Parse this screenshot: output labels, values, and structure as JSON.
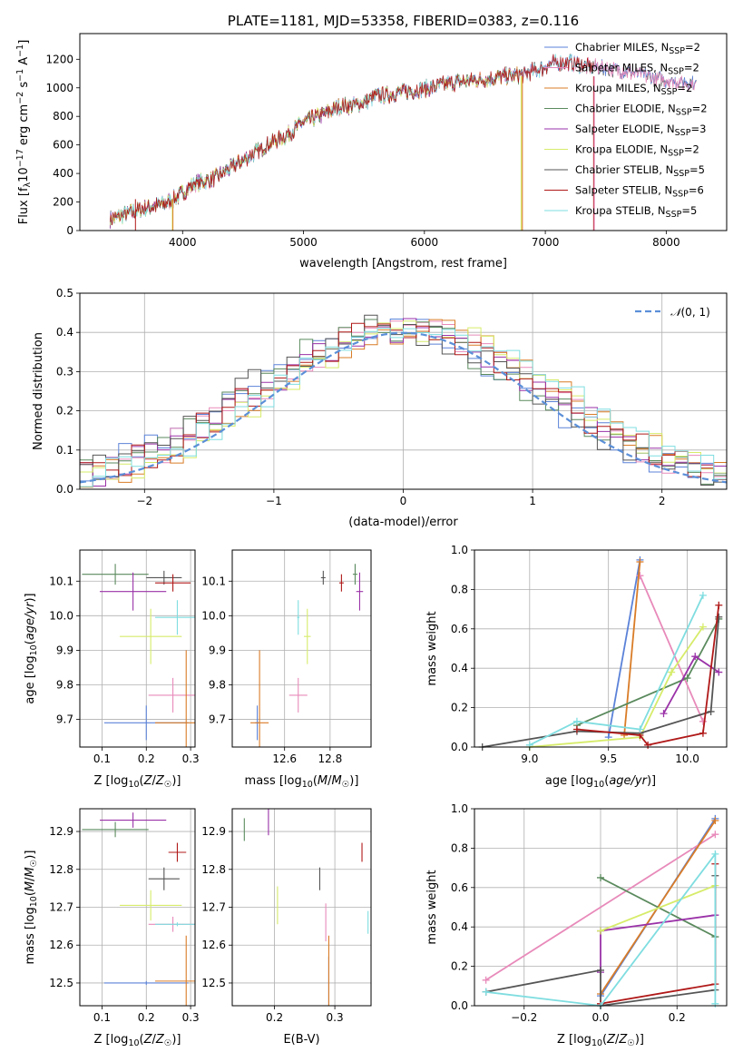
{
  "colors": {
    "chabrier_miles": "#5b82d8",
    "salpeter_miles": "#e88aba",
    "kroupa_miles": "#d97c27",
    "chabrier_elodie": "#5a8a5d",
    "salpeter_elodie": "#9a32a8",
    "kroupa_elodie": "#d6ec6a",
    "chabrier_stelib": "#555555",
    "salpeter_stelib": "#b01818",
    "kroupa_stelib": "#7fdde0",
    "normal": "#5b8fd8"
  },
  "chart_data": [
    {
      "type": "line",
      "title": "PLATE=1181, MJD=53358, FIBERID=0383, z=0.116",
      "xlabel": "wavelength [Angstrom, rest frame]",
      "ylabel": "Flux [f",
      "ylabel_parts": [
        "Flux [f",
        "λ",
        "10",
        "−17",
        " erg cm",
        "−2",
        " s",
        "−1",
        " A",
        "−1",
        "]"
      ],
      "xlim": [
        3150,
        8500
      ],
      "ylim": [
        0,
        1380
      ],
      "xticks": [
        4000,
        5000,
        6000,
        7000,
        8000
      ],
      "yticks": [
        0,
        200,
        400,
        600,
        800,
        1000,
        1200
      ],
      "spectrum_anchors": {
        "x": [
          3400,
          3550,
          3700,
          3850,
          3950,
          4100,
          4250,
          4400,
          4550,
          4700,
          4850,
          5000,
          5150,
          5300,
          5450,
          5600,
          5750,
          5900,
          6050,
          6200,
          6350,
          6500,
          6650,
          6800,
          6950,
          7050,
          7200,
          7350,
          7500,
          7650,
          7800,
          7950,
          8100,
          8250
        ],
        "y": [
          80,
          120,
          160,
          190,
          230,
          330,
          360,
          440,
          520,
          600,
          660,
          760,
          810,
          870,
          880,
          940,
          960,
          980,
          1000,
          1030,
          1050,
          1060,
          1080,
          1090,
          1130,
          1170,
          1180,
          1150,
          1140,
          1120,
          1090,
          1060,
          1040,
          1030
        ]
      },
      "series": [
        {
          "name_main": "Chabrier MILES, N",
          "name_sub": "SSP",
          "name_tail": "=2",
          "color_key": "chabrier_miles",
          "cut": 8250
        },
        {
          "name_main": "Salpeter MILES, N",
          "name_sub": "SSP",
          "name_tail": "=2",
          "color_key": "salpeter_miles",
          "cut": 8250
        },
        {
          "name_main": "Kroupa MILES, N",
          "name_sub": "SSP",
          "name_tail": "=2",
          "color_key": "kroupa_miles",
          "cut": 6800
        },
        {
          "name_main": "Chabrier ELODIE, N",
          "name_sub": "SSP",
          "name_tail": "=2",
          "color_key": "chabrier_elodie",
          "cut": 6800
        },
        {
          "name_main": "Salpeter ELODIE, N",
          "name_sub": "SSP",
          "name_tail": "=3",
          "color_key": "salpeter_elodie",
          "cut": 6800
        },
        {
          "name_main": "Kroupa ELODIE, N",
          "name_sub": "SSP",
          "name_tail": "=2",
          "color_key": "kroupa_elodie",
          "cut": 6800
        },
        {
          "name_main": "Chabrier STELIB, N",
          "name_sub": "SSP",
          "name_tail": "=5",
          "color_key": "chabrier_stelib",
          "cut": 8250
        },
        {
          "name_main": "Salpeter STELIB, N",
          "name_sub": "SSP",
          "name_tail": "=6",
          "color_key": "salpeter_stelib",
          "cut": 7400
        },
        {
          "name_main": "Kroupa STELIB, N",
          "name_sub": "SSP",
          "name_tail": "=5",
          "color_key": "kroupa_stelib",
          "cut": 7400
        }
      ]
    },
    {
      "type": "histogram",
      "xlabel": "(data-model)/error",
      "ylabel": "Normed distribution",
      "xlim": [
        -2.5,
        2.5
      ],
      "ylim": [
        0,
        0.5
      ],
      "xticks": [
        -2,
        -1,
        0,
        1,
        2
      ],
      "yticks": [
        0.0,
        0.1,
        0.2,
        0.3,
        0.4,
        0.5
      ],
      "bin_width": 0.1,
      "legend": "𝒩(0, 1)"
    },
    {
      "type": "scatter",
      "xlabel": "Z [log10(Z/Z☉)]",
      "ylabel": "age  [log10(age/yr)]",
      "xlim": [
        0.05,
        0.31
      ],
      "ylim": [
        9.62,
        10.19
      ],
      "xticks": [
        0.1,
        0.2,
        0.3
      ],
      "yticks": [
        9.7,
        9.8,
        9.9,
        10.0,
        10.1
      ],
      "points": [
        {
          "k": "chabrier_miles",
          "x": 0.2,
          "y": 9.69,
          "xe": 0.095,
          "ye": 0.05
        },
        {
          "k": "salpeter_miles",
          "x": 0.26,
          "y": 9.77,
          "xe": 0.055,
          "ye": 0.05
        },
        {
          "k": "kroupa_miles",
          "x": 0.29,
          "y": 9.69,
          "xe": 0.07,
          "ye": 0.21
        },
        {
          "k": "chabrier_elodie",
          "x": 0.13,
          "y": 10.12,
          "xe": 0.075,
          "ye": 0.03
        },
        {
          "k": "salpeter_elodie",
          "x": 0.17,
          "y": 10.07,
          "xe": 0.075,
          "ye": 0.055
        },
        {
          "k": "kroupa_elodie",
          "x": 0.21,
          "y": 9.94,
          "xe": 0.07,
          "ye": 0.08
        },
        {
          "k": "chabrier_stelib",
          "x": 0.24,
          "y": 10.11,
          "xe": 0.04,
          "ye": 0.02
        },
        {
          "k": "salpeter_stelib",
          "x": 0.26,
          "y": 10.095,
          "xe": 0.04,
          "ye": 0.025
        },
        {
          "k": "kroupa_stelib",
          "x": 0.27,
          "y": 9.995,
          "xe": 0.05,
          "ye": 0.05
        }
      ]
    },
    {
      "type": "scatter",
      "xlabel": "mass [log10(M/M☉)]",
      "ylabel": "",
      "xlim": [
        12.37,
        12.98
      ],
      "ylim": [
        9.62,
        10.19
      ],
      "xticks": [
        12.6,
        12.8
      ],
      "yticks": [
        9.7,
        9.8,
        9.9,
        10.0,
        10.1
      ],
      "points": [
        {
          "k": "chabrier_miles",
          "x": 12.48,
          "y": 9.69,
          "xe": 0.01,
          "ye": 0.05
        },
        {
          "k": "salpeter_miles",
          "x": 12.66,
          "y": 9.77,
          "xe": 0.04,
          "ye": 0.05
        },
        {
          "k": "kroupa_miles",
          "x": 12.49,
          "y": 9.69,
          "xe": 0.04,
          "ye": 0.21
        },
        {
          "k": "chabrier_elodie",
          "x": 12.91,
          "y": 10.12,
          "xe": 0.01,
          "ye": 0.03
        },
        {
          "k": "salpeter_elodie",
          "x": 12.93,
          "y": 10.07,
          "xe": 0.015,
          "ye": 0.055
        },
        {
          "k": "kroupa_elodie",
          "x": 12.7,
          "y": 9.94,
          "xe": 0.015,
          "ye": 0.08
        },
        {
          "k": "chabrier_stelib",
          "x": 12.77,
          "y": 10.11,
          "xe": 0.01,
          "ye": 0.02
        },
        {
          "k": "salpeter_stelib",
          "x": 12.85,
          "y": 10.095,
          "xe": 0.01,
          "ye": 0.025
        },
        {
          "k": "kroupa_stelib",
          "x": 12.66,
          "y": 9.995,
          "xe": 0.005,
          "ye": 0.05
        }
      ]
    },
    {
      "type": "line",
      "xlabel": "age  [log10(age/yr)]",
      "ylabel": "mass weight",
      "xlim": [
        8.65,
        10.25
      ],
      "ylim": [
        0,
        1.0
      ],
      "xticks": [
        9.0,
        9.5,
        10.0
      ],
      "yticks": [
        0.0,
        0.2,
        0.4,
        0.6,
        0.8,
        1.0
      ],
      "series": [
        {
          "k": "chabrier_miles",
          "x": [
            9.5,
            9.7
          ],
          "y": [
            0.05,
            0.95
          ]
        },
        {
          "k": "salpeter_miles",
          "x": [
            9.7,
            10.1
          ],
          "y": [
            0.87,
            0.13
          ]
        },
        {
          "k": "kroupa_miles",
          "x": [
            9.6,
            9.7
          ],
          "y": [
            0.06,
            0.94
          ]
        },
        {
          "k": "chabrier_elodie",
          "x": [
            9.3,
            10.0,
            10.2
          ],
          "y": [
            0.11,
            0.35,
            0.65
          ]
        },
        {
          "k": "salpeter_elodie",
          "x": [
            9.85,
            10.05,
            10.2
          ],
          "y": [
            0.17,
            0.46,
            0.38
          ]
        },
        {
          "k": "kroupa_elodie",
          "x": [
            9.0,
            9.7,
            9.9,
            10.1
          ],
          "y": [
            0.0,
            0.05,
            0.38,
            0.61
          ]
        },
        {
          "k": "chabrier_stelib",
          "x": [
            8.7,
            9.3,
            9.7,
            10.15,
            10.2
          ],
          "y": [
            0.0,
            0.08,
            0.07,
            0.18,
            0.66
          ]
        },
        {
          "k": "salpeter_stelib",
          "x": [
            9.3,
            9.7,
            9.75,
            10.1,
            10.2
          ],
          "y": [
            0.09,
            0.06,
            0.01,
            0.07,
            0.72
          ]
        },
        {
          "k": "kroupa_stelib",
          "x": [
            9.0,
            9.3,
            9.7,
            10.1
          ],
          "y": [
            0.01,
            0.13,
            0.09,
            0.77
          ]
        }
      ]
    },
    {
      "type": "scatter",
      "xlabel": "Z [log10(Z/Z☉)]",
      "ylabel": "mass [log10(M/M☉)]",
      "xlim": [
        0.05,
        0.31
      ],
      "ylim": [
        12.44,
        12.96
      ],
      "xticks": [
        0.1,
        0.2,
        0.3
      ],
      "yticks": [
        12.5,
        12.6,
        12.7,
        12.8,
        12.9
      ],
      "points": [
        {
          "k": "chabrier_miles",
          "x": 0.2,
          "y": 12.5,
          "xe": 0.095,
          "ye": 0.005
        },
        {
          "k": "salpeter_miles",
          "x": 0.26,
          "y": 12.655,
          "xe": 0.055,
          "ye": 0.02
        },
        {
          "k": "kroupa_miles",
          "x": 0.29,
          "y": 12.505,
          "xe": 0.07,
          "ye": 0.12
        },
        {
          "k": "chabrier_elodie",
          "x": 0.13,
          "y": 12.905,
          "xe": 0.075,
          "ye": 0.02
        },
        {
          "k": "salpeter_elodie",
          "x": 0.17,
          "y": 12.93,
          "xe": 0.075,
          "ye": 0.02
        },
        {
          "k": "kroupa_elodie",
          "x": 0.21,
          "y": 12.705,
          "xe": 0.07,
          "ye": 0.04
        },
        {
          "k": "chabrier_stelib",
          "x": 0.24,
          "y": 12.775,
          "xe": 0.035,
          "ye": 0.03
        },
        {
          "k": "salpeter_stelib",
          "x": 0.27,
          "y": 12.845,
          "xe": 0.02,
          "ye": 0.025
        },
        {
          "k": "kroupa_stelib",
          "x": 0.27,
          "y": 12.655,
          "xe": 0.05,
          "ye": 0.005
        }
      ]
    },
    {
      "type": "scatter",
      "xlabel": "E(B-V)",
      "ylabel": "",
      "xlim": [
        0.13,
        0.36
      ],
      "ylim": [
        12.44,
        12.96
      ],
      "xticks": [
        0.2,
        0.3
      ],
      "yticks": [
        12.5,
        12.6,
        12.7,
        12.8,
        12.9
      ],
      "points": [
        {
          "k": "chabrier_miles",
          "x": 0.29,
          "y": 12.5,
          "xe": 0.0,
          "ye": 0.07
        },
        {
          "k": "salpeter_miles",
          "x": 0.285,
          "y": 12.66,
          "xe": 0.0,
          "ye": 0.05
        },
        {
          "k": "kroupa_miles",
          "x": 0.29,
          "y": 12.505,
          "xe": 0.0,
          "ye": 0.12
        },
        {
          "k": "chabrier_elodie",
          "x": 0.15,
          "y": 12.905,
          "xe": 0.0,
          "ye": 0.03
        },
        {
          "k": "salpeter_elodie",
          "x": 0.19,
          "y": 12.93,
          "xe": 0.0,
          "ye": 0.04
        },
        {
          "k": "kroupa_elodie",
          "x": 0.205,
          "y": 12.705,
          "xe": 0.0,
          "ye": 0.05
        },
        {
          "k": "chabrier_stelib",
          "x": 0.275,
          "y": 12.775,
          "xe": 0.0,
          "ye": 0.03
        },
        {
          "k": "salpeter_stelib",
          "x": 0.345,
          "y": 12.845,
          "xe": 0.0,
          "ye": 0.025
        },
        {
          "k": "kroupa_stelib",
          "x": 0.355,
          "y": 12.66,
          "xe": 0.0,
          "ye": 0.03
        }
      ]
    },
    {
      "type": "line",
      "xlabel": "Z [log10(Z/Z☉)]",
      "ylabel": "mass weight",
      "xlim": [
        -0.33,
        0.33
      ],
      "ylim": [
        0,
        1.0
      ],
      "xticks": [
        -0.2,
        0.0,
        0.2
      ],
      "yticks": [
        0.0,
        0.2,
        0.4,
        0.6,
        0.8,
        1.0
      ],
      "series": [
        {
          "k": "chabrier_miles",
          "x": [
            0.0,
            0.3
          ],
          "y": [
            0.05,
            0.95
          ]
        },
        {
          "k": "salpeter_miles",
          "x": [
            -0.3,
            0.3
          ],
          "y": [
            0.13,
            0.87
          ]
        },
        {
          "k": "kroupa_miles",
          "x": [
            0.0,
            0.3
          ],
          "y": [
            0.06,
            0.94
          ]
        },
        {
          "k": "chabrier_elodie",
          "x": [
            0.0,
            0.3
          ],
          "y": [
            0.65,
            0.35
          ]
        },
        {
          "k": "salpeter_elodie",
          "x": [
            0.0,
            0.0,
            0.3
          ],
          "y": [
            0.17,
            0.38,
            0.46
          ]
        },
        {
          "k": "kroupa_elodie",
          "x": [
            0.0,
            0.3
          ],
          "y": [
            0.38,
            0.61
          ]
        },
        {
          "k": "chabrier_stelib",
          "x": [
            -0.3,
            0.0,
            0.0,
            0.3,
            0.3
          ],
          "y": [
            0.07,
            0.18,
            0.0,
            0.08,
            0.66
          ]
        },
        {
          "k": "salpeter_stelib",
          "x": [
            0.0,
            0.3,
            0.3
          ],
          "y": [
            0.01,
            0.11,
            0.72
          ]
        },
        {
          "k": "kroupa_stelib",
          "x": [
            -0.3,
            0.0,
            0.3,
            0.3
          ],
          "y": [
            0.07,
            0.0,
            0.77,
            0.01
          ]
        }
      ]
    }
  ]
}
